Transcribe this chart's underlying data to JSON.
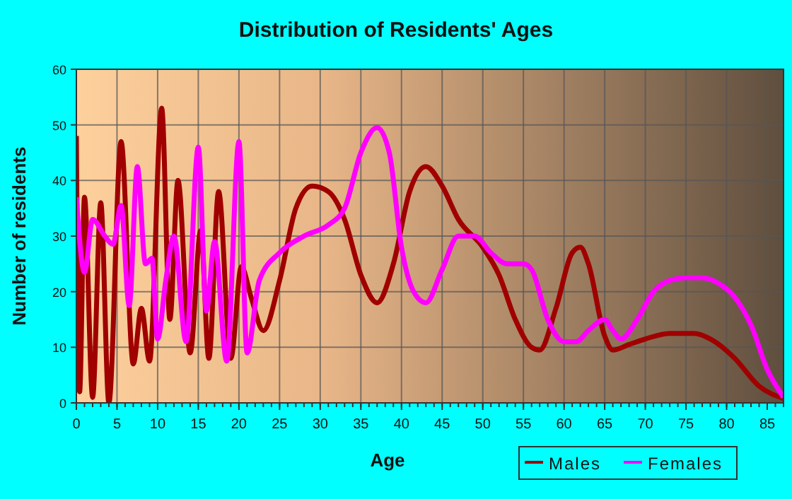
{
  "chart_data": {
    "type": "line",
    "title": "Distribution of Residents' Ages",
    "xlabel": "Age",
    "ylabel": "Number of residents",
    "xlim": [
      0,
      87
    ],
    "ylim": [
      0,
      60
    ],
    "xticks": [
      0,
      5,
      10,
      15,
      20,
      25,
      30,
      35,
      40,
      45,
      50,
      55,
      60,
      65,
      70,
      75,
      80,
      85
    ],
    "yticks": [
      0,
      10,
      20,
      30,
      40,
      50,
      60
    ],
    "grid": true,
    "legend": "bottom right",
    "line_style": "solid",
    "series": [
      {
        "name": "Males",
        "color": "#a00000",
        "x": [
          0,
          0.4,
          1,
          2,
          3,
          4,
          5.5,
          7,
          8,
          9,
          10.5,
          11.5,
          12.5,
          14,
          15.3,
          16.3,
          17.5,
          19,
          20.3,
          21.5,
          23,
          25,
          27,
          29,
          31,
          33,
          35,
          37,
          39,
          41,
          43,
          45,
          47,
          50,
          52,
          54,
          56,
          57,
          59,
          61,
          62,
          63,
          65,
          66,
          68,
          70,
          73,
          76,
          78,
          81,
          84,
          87
        ],
        "values": [
          48,
          2,
          37,
          1,
          36,
          0,
          47,
          7,
          17,
          7.5,
          53,
          15,
          40,
          9,
          31,
          8,
          38,
          8,
          24.5,
          19,
          13,
          22,
          35,
          39,
          38,
          33,
          23,
          18,
          25,
          38,
          42.5,
          39,
          33,
          28,
          23,
          15,
          10,
          9.5,
          17,
          27,
          28,
          25,
          12,
          9.5,
          10.5,
          11.5,
          12.5,
          12.5,
          11.5,
          8,
          3,
          0.8
        ]
      },
      {
        "name": "Females",
        "color": "#ff00ff",
        "x": [
          0,
          1,
          2,
          3.5,
          4.5,
          5.5,
          6.5,
          7.5,
          8.5,
          9.3,
          10,
          11,
          12,
          13.5,
          15,
          16,
          17,
          18.5,
          20,
          21,
          22.5,
          25,
          28,
          31,
          33,
          35,
          37,
          38.5,
          40,
          41.5,
          43,
          45,
          47,
          49,
          51,
          53,
          55,
          56,
          58,
          60,
          61.5,
          63,
          65,
          66,
          67,
          69,
          71,
          73,
          75,
          77,
          79,
          81,
          83,
          85,
          87
        ],
        "values": [
          37,
          23.5,
          33,
          30,
          28.5,
          35.5,
          17.5,
          42.5,
          25,
          26,
          11.5,
          22,
          30,
          11,
          46,
          16.5,
          29,
          7.5,
          47,
          9,
          22,
          27,
          30,
          32,
          35,
          45,
          49.5,
          45,
          28,
          20,
          18,
          24,
          30,
          30,
          27,
          25,
          25,
          24,
          15,
          11,
          11,
          13,
          15,
          13,
          11.5,
          15,
          20,
          22,
          22.5,
          22.5,
          21.5,
          19,
          14,
          6,
          1
        ]
      }
    ]
  }
}
